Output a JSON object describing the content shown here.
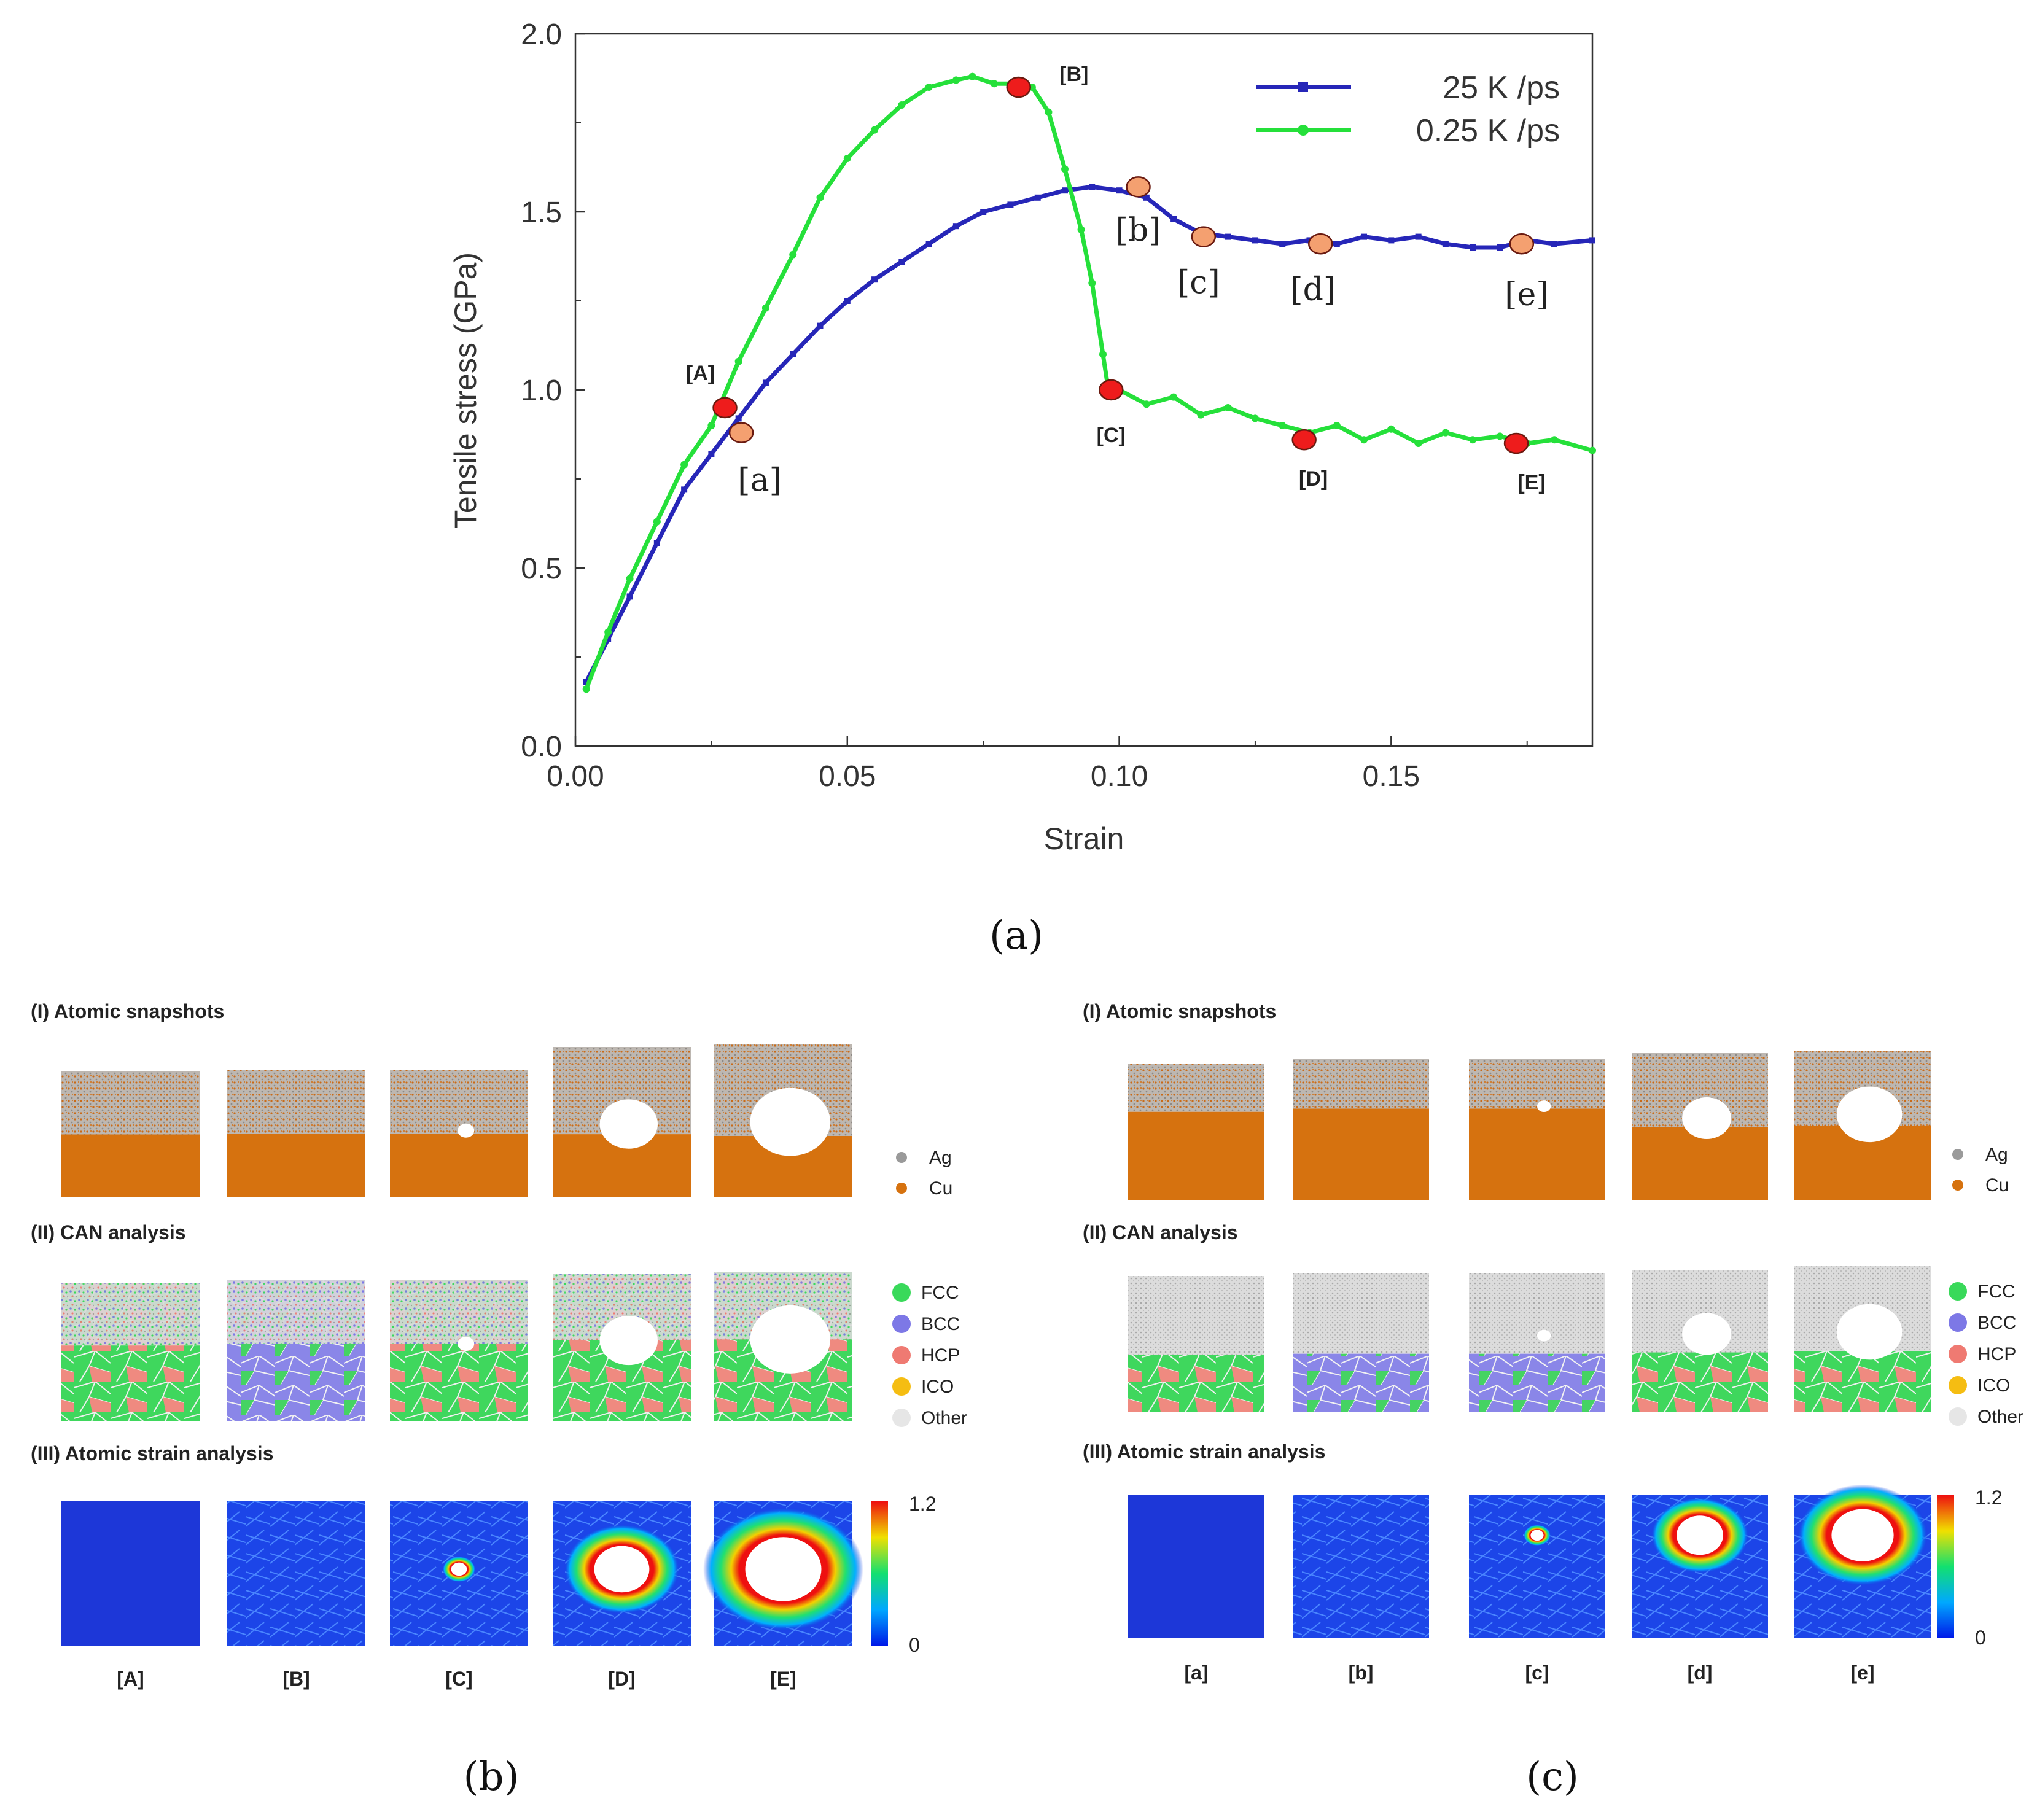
{
  "colors": {
    "blue": "#2626b8",
    "green": "#25e03a",
    "red_marker": "#ee1c1c",
    "orange_marker": "#f4a070",
    "ag": "#b8b3ae",
    "cu": "#d6720f",
    "fcc": "#39d95a",
    "bcc": "#7d78e6",
    "hcp": "#ef7a72",
    "ico": "#f5bd12",
    "other": "#e6e6e6"
  },
  "chart_data": {
    "type": "line",
    "title": "",
    "xlabel": "Strain",
    "ylabel": "Tensile stress (GPa)",
    "xlim": [
      0.0,
      0.187
    ],
    "ylim": [
      0.0,
      2.0
    ],
    "xticks": [
      "0.00",
      "0.05",
      "0.10",
      "0.15"
    ],
    "yticks": [
      "0.0",
      "0.5",
      "1.0",
      "1.5",
      "2.0"
    ],
    "legend_position": "top-right",
    "series": [
      {
        "name": "25 K /ps",
        "color": "#2626b8",
        "x": [
          0.002,
          0.006,
          0.01,
          0.015,
          0.02,
          0.025,
          0.03,
          0.035,
          0.04,
          0.045,
          0.05,
          0.055,
          0.06,
          0.065,
          0.07,
          0.075,
          0.08,
          0.085,
          0.09,
          0.095,
          0.1,
          0.105,
          0.11,
          0.115,
          0.12,
          0.125,
          0.13,
          0.135,
          0.14,
          0.145,
          0.15,
          0.155,
          0.16,
          0.165,
          0.17,
          0.175,
          0.18,
          0.187
        ],
        "y": [
          0.18,
          0.3,
          0.42,
          0.57,
          0.72,
          0.82,
          0.92,
          1.02,
          1.1,
          1.18,
          1.25,
          1.31,
          1.36,
          1.41,
          1.46,
          1.5,
          1.52,
          1.54,
          1.56,
          1.57,
          1.56,
          1.54,
          1.48,
          1.44,
          1.43,
          1.42,
          1.41,
          1.42,
          1.41,
          1.43,
          1.42,
          1.43,
          1.41,
          1.4,
          1.4,
          1.42,
          1.41,
          1.42
        ]
      },
      {
        "name": "0.25 K /ps",
        "color": "#25e03a",
        "x": [
          0.002,
          0.006,
          0.01,
          0.015,
          0.02,
          0.025,
          0.03,
          0.035,
          0.04,
          0.045,
          0.05,
          0.055,
          0.06,
          0.065,
          0.07,
          0.073,
          0.077,
          0.081,
          0.084,
          0.087,
          0.09,
          0.093,
          0.095,
          0.097,
          0.098,
          0.1,
          0.105,
          0.11,
          0.115,
          0.12,
          0.125,
          0.13,
          0.135,
          0.14,
          0.145,
          0.15,
          0.155,
          0.16,
          0.165,
          0.17,
          0.175,
          0.18,
          0.187
        ],
        "y": [
          0.16,
          0.32,
          0.47,
          0.63,
          0.79,
          0.9,
          1.08,
          1.23,
          1.38,
          1.54,
          1.65,
          1.73,
          1.8,
          1.85,
          1.87,
          1.88,
          1.86,
          1.86,
          1.85,
          1.78,
          1.62,
          1.45,
          1.3,
          1.1,
          1.0,
          1.0,
          0.96,
          0.98,
          0.93,
          0.95,
          0.92,
          0.9,
          0.88,
          0.9,
          0.86,
          0.89,
          0.85,
          0.88,
          0.86,
          0.87,
          0.85,
          0.86,
          0.83
        ]
      }
    ],
    "markers": [
      {
        "label": "[A]",
        "x": 0.0275,
        "y": 0.95,
        "kind": "red"
      },
      {
        "label": "[B]",
        "x": 0.0815,
        "y": 1.85,
        "kind": "red"
      },
      {
        "label": "[C]",
        "x": 0.0985,
        "y": 1.0,
        "kind": "red"
      },
      {
        "label": "[D]",
        "x": 0.134,
        "y": 0.86,
        "kind": "red"
      },
      {
        "label": "[E]",
        "x": 0.173,
        "y": 0.85,
        "kind": "red"
      },
      {
        "label": "[a]",
        "x": 0.0305,
        "y": 0.88,
        "kind": "orange"
      },
      {
        "label": "[b]",
        "x": 0.1035,
        "y": 1.57,
        "kind": "orange"
      },
      {
        "label": "[c]",
        "x": 0.1155,
        "y": 1.43,
        "kind": "orange"
      },
      {
        "label": "[d]",
        "x": 0.137,
        "y": 1.41,
        "kind": "orange"
      },
      {
        "label": "[e]",
        "x": 0.174,
        "y": 1.41,
        "kind": "orange"
      }
    ]
  },
  "captions": {
    "a": "(a)",
    "b": "(b)",
    "c": "(c)"
  },
  "panel_b": {
    "row1_title": "(I)   Atomic snapshots",
    "row2_title": "(II)  CAN analysis",
    "row3_title": "(III)  Atomic strain analysis",
    "legend_ag": "Ag",
    "legend_cu": "Cu",
    "legend_fcc": "FCC",
    "legend_bcc": "BCC",
    "legend_hcp": "HCP",
    "legend_ico": "ICO",
    "legend_other": "Other",
    "colorbar_max": "1.2",
    "colorbar_min": "0",
    "frame_labels": [
      "[A]",
      "[B]",
      "[C]",
      "[D]",
      "[E]"
    ],
    "void_sizes": [
      0,
      0,
      0.12,
      0.42,
      0.58
    ]
  },
  "panel_c": {
    "row1_title": "(I)   Atomic snapshots",
    "row2_title": "(II)  CAN analysis",
    "row3_title": "(III)  Atomic strain analysis",
    "legend_ag": "Ag",
    "legend_cu": "Cu",
    "legend_fcc": "FCC",
    "legend_bcc": "BCC",
    "legend_hcp": "HCP",
    "legend_ico": "ICO",
    "legend_other": "Other",
    "colorbar_max": "1.2",
    "colorbar_min": "0",
    "frame_labels": [
      "[a]",
      "[b]",
      "[c]",
      "[d]",
      "[e]"
    ],
    "void_sizes": [
      0,
      0,
      0.1,
      0.36,
      0.48
    ]
  }
}
